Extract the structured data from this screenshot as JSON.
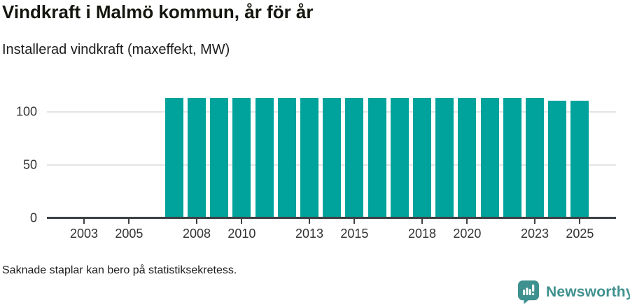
{
  "header": {
    "title": "Vindkraft i Malmö kommun, år för år",
    "subtitle": "Installerad vindkraft (maxeffekt, MW)"
  },
  "chart_data": {
    "type": "bar",
    "title": "Vindkraft i Malmö kommun, år för år",
    "subtitle": "Installerad vindkraft (maxeffekt, MW)",
    "ylabel": "",
    "xlabel": "",
    "unit": "MW",
    "years": [
      2002,
      2003,
      2004,
      2005,
      2006,
      2007,
      2008,
      2009,
      2010,
      2011,
      2012,
      2013,
      2014,
      2015,
      2016,
      2017,
      2018,
      2019,
      2020,
      2021,
      2022,
      2023,
      2024,
      2025
    ],
    "values": [
      null,
      null,
      null,
      null,
      null,
      113,
      113,
      113,
      113,
      113,
      113,
      113,
      113,
      113,
      113,
      113,
      113,
      113,
      113,
      113,
      113,
      113,
      110,
      110
    ],
    "x_tick_years": [
      2003,
      2005,
      2008,
      2010,
      2013,
      2015,
      2018,
      2020,
      2023,
      2025
    ],
    "x_tick_labels": [
      "2003",
      "2005",
      "2008",
      "2010",
      "2013",
      "2015",
      "2018",
      "2020",
      "2023",
      "2025"
    ],
    "y_ticks": [
      0,
      50,
      100
    ],
    "y_tick_labels": [
      "0",
      "50",
      "100"
    ],
    "ylim": [
      0,
      115
    ],
    "xlim": [
      2001.4,
      2026.6
    ],
    "grid": "horizontal-only",
    "legend": "none"
  },
  "colors": {
    "bar": "#00a39b",
    "grid": "#e4e4e4",
    "axis": "#3d4043",
    "tick_label": "#333333",
    "logo": "#3f918f"
  },
  "footer": {
    "note": "Saknade staplar kan bero på statistiksekretess.",
    "logo_text": "Newsworthy",
    "logo_icon": "newsworthy-speech-bubble-bar-chart-icon"
  }
}
